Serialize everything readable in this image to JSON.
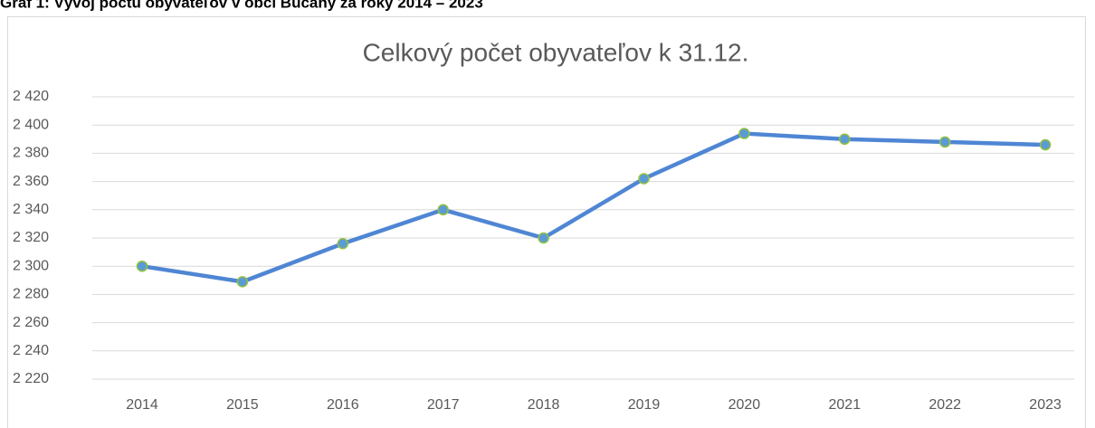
{
  "heading": "Graf 1: Vývoj počtu obyvateľov v obci Bučany za roky 2014 – 2023",
  "chart_data": {
    "type": "line",
    "title": "Celkový počet obyvateľov k 31.12.",
    "categories": [
      "2014",
      "2015",
      "2016",
      "2017",
      "2018",
      "2019",
      "2020",
      "2021",
      "2022",
      "2023"
    ],
    "series": [
      {
        "name": "Celkový počet obyvateľov k 31.12.",
        "color": "#4f86d4",
        "marker_color": "#5b9bd5",
        "marker_edge": "#92c13d",
        "values": [
          2300,
          2289,
          2316,
          2340,
          2320,
          2362,
          2394,
          2390,
          2388,
          2386
        ]
      }
    ],
    "ylim": [
      2220,
      2420
    ],
    "yticks": [
      {
        "value": 2220,
        "label": "2 220"
      },
      {
        "value": 2240,
        "label": "2 240"
      },
      {
        "value": 2260,
        "label": "2 260"
      },
      {
        "value": 2280,
        "label": "2 280"
      },
      {
        "value": 2300,
        "label": "2 300"
      },
      {
        "value": 2320,
        "label": "2 320"
      },
      {
        "value": 2340,
        "label": "2 340"
      },
      {
        "value": 2360,
        "label": "2 360"
      },
      {
        "value": 2380,
        "label": "2 380"
      },
      {
        "value": 2400,
        "label": "2 400"
      },
      {
        "value": 2420,
        "label": "2 420"
      }
    ],
    "grid": true
  }
}
